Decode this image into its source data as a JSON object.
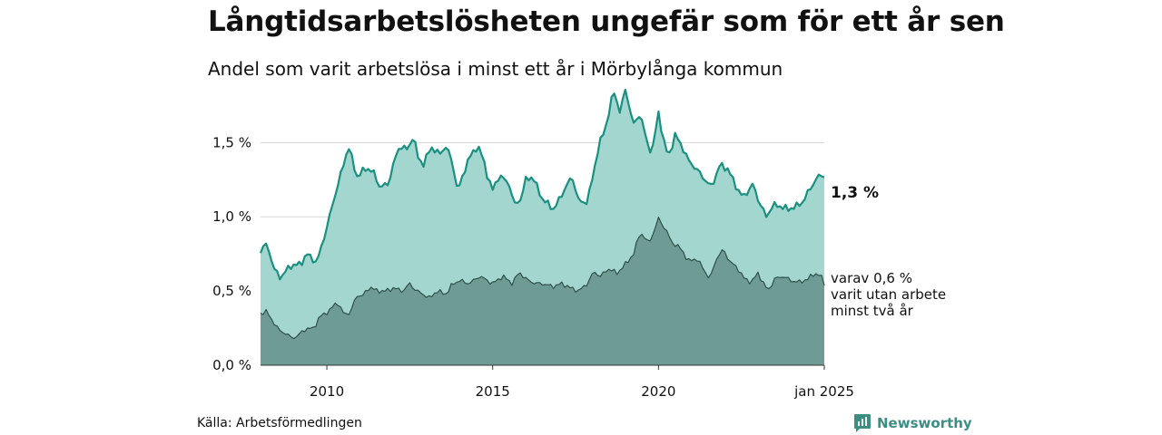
{
  "title": "Långtidsarbetslösheten ungefär som för ett år sen",
  "subtitle": "Andel som varit arbetslösa i minst ett år i Mörbylånga kommun",
  "source": "Källa: Arbetsförmedlingen",
  "brand": {
    "name": "Newsworthy",
    "icon": "newsworthy-logo-icon",
    "color": "#3c8e82"
  },
  "end_label": "1,3 %",
  "sub_label_lines": [
    "varav 0,6 %",
    "varit utan arbete",
    "minst två år"
  ],
  "colors": {
    "total_fill": "#a3d6cf",
    "total_line": "#1a9080",
    "long_fill": "#6e9c95",
    "long_line": "#2f4f4a",
    "grid": "#d7d7d7"
  },
  "chart_data": {
    "type": "area",
    "x_unit": "year",
    "x_start": 2008.0,
    "x_end": 2025.0,
    "x_step_months": 1,
    "xlim": [
      2008.0,
      2025.0
    ],
    "ylim": [
      0,
      1.85
    ],
    "grid": "horizontal",
    "yticks": [
      {
        "value": 0.0,
        "label": "0,0 %"
      },
      {
        "value": 0.5,
        "label": "0,5 %"
      },
      {
        "value": 1.0,
        "label": "1,0 %"
      },
      {
        "value": 1.5,
        "label": "1,5 %"
      }
    ],
    "xticks": [
      {
        "value": 2010,
        "label": "2010"
      },
      {
        "value": 2015,
        "label": "2015"
      },
      {
        "value": 2020,
        "label": "2020"
      },
      {
        "value": 2025,
        "label": "jan 2025"
      }
    ],
    "series": [
      {
        "name": "",
        "key": "total",
        "anchors": [
          [
            2008.0,
            0.77
          ],
          [
            2008.2,
            0.82
          ],
          [
            2008.4,
            0.65
          ],
          [
            2008.6,
            0.59
          ],
          [
            2008.9,
            0.67
          ],
          [
            2009.2,
            0.68
          ],
          [
            2009.4,
            0.75
          ],
          [
            2009.7,
            0.69
          ],
          [
            2010.0,
            0.93
          ],
          [
            2010.25,
            1.15
          ],
          [
            2010.5,
            1.35
          ],
          [
            2010.65,
            1.48
          ],
          [
            2010.9,
            1.27
          ],
          [
            2011.2,
            1.33
          ],
          [
            2011.4,
            1.3
          ],
          [
            2011.6,
            1.2
          ],
          [
            2011.85,
            1.22
          ],
          [
            2012.0,
            1.35
          ],
          [
            2012.2,
            1.48
          ],
          [
            2012.45,
            1.45
          ],
          [
            2012.6,
            1.55
          ],
          [
            2012.75,
            1.4
          ],
          [
            2012.9,
            1.35
          ],
          [
            2013.15,
            1.47
          ],
          [
            2013.4,
            1.42
          ],
          [
            2013.6,
            1.48
          ],
          [
            2013.8,
            1.35
          ],
          [
            2013.95,
            1.17
          ],
          [
            2014.25,
            1.38
          ],
          [
            2014.55,
            1.48
          ],
          [
            2014.7,
            1.4
          ],
          [
            2014.85,
            1.27
          ],
          [
            2015.0,
            1.18
          ],
          [
            2015.2,
            1.28
          ],
          [
            2015.5,
            1.22
          ],
          [
            2015.65,
            1.08
          ],
          [
            2015.85,
            1.12
          ],
          [
            2016.0,
            1.25
          ],
          [
            2016.2,
            1.27
          ],
          [
            2016.5,
            1.12
          ],
          [
            2016.7,
            1.08
          ],
          [
            2016.85,
            1.05
          ],
          [
            2017.2,
            1.2
          ],
          [
            2017.4,
            1.27
          ],
          [
            2017.6,
            1.1
          ],
          [
            2017.85,
            1.1
          ],
          [
            2018.0,
            1.25
          ],
          [
            2018.2,
            1.48
          ],
          [
            2018.4,
            1.6
          ],
          [
            2018.65,
            1.85
          ],
          [
            2018.85,
            1.7
          ],
          [
            2019.0,
            1.86
          ],
          [
            2019.25,
            1.62
          ],
          [
            2019.45,
            1.7
          ],
          [
            2019.65,
            1.5
          ],
          [
            2019.8,
            1.43
          ],
          [
            2020.0,
            1.7
          ],
          [
            2020.15,
            1.52
          ],
          [
            2020.3,
            1.4
          ],
          [
            2020.5,
            1.55
          ],
          [
            2020.7,
            1.48
          ],
          [
            2020.9,
            1.38
          ],
          [
            2021.15,
            1.32
          ],
          [
            2021.4,
            1.25
          ],
          [
            2021.6,
            1.2
          ],
          [
            2021.85,
            1.35
          ],
          [
            2022.1,
            1.32
          ],
          [
            2022.35,
            1.2
          ],
          [
            2022.55,
            1.13
          ],
          [
            2022.85,
            1.22
          ],
          [
            2023.0,
            1.12
          ],
          [
            2023.25,
            1.0
          ],
          [
            2023.45,
            1.08
          ],
          [
            2023.7,
            1.07
          ],
          [
            2023.9,
            1.05
          ],
          [
            2024.15,
            1.07
          ],
          [
            2024.35,
            1.1
          ],
          [
            2024.6,
            1.2
          ],
          [
            2024.8,
            1.27
          ],
          [
            2025.0,
            1.28
          ]
        ]
      },
      {
        "name": "",
        "key": "long",
        "anchors": [
          [
            2008.0,
            0.35
          ],
          [
            2008.2,
            0.36
          ],
          [
            2008.5,
            0.25
          ],
          [
            2008.7,
            0.22
          ],
          [
            2008.9,
            0.19
          ],
          [
            2009.1,
            0.19
          ],
          [
            2009.3,
            0.24
          ],
          [
            2009.6,
            0.25
          ],
          [
            2009.8,
            0.33
          ],
          [
            2010.1,
            0.37
          ],
          [
            2010.3,
            0.43
          ],
          [
            2010.5,
            0.35
          ],
          [
            2010.7,
            0.35
          ],
          [
            2010.9,
            0.47
          ],
          [
            2011.1,
            0.47
          ],
          [
            2011.3,
            0.53
          ],
          [
            2011.5,
            0.5
          ],
          [
            2011.8,
            0.5
          ],
          [
            2012.0,
            0.52
          ],
          [
            2012.3,
            0.5
          ],
          [
            2012.5,
            0.55
          ],
          [
            2012.7,
            0.5
          ],
          [
            2012.9,
            0.48
          ],
          [
            2013.1,
            0.45
          ],
          [
            2013.3,
            0.5
          ],
          [
            2013.6,
            0.48
          ],
          [
            2013.8,
            0.55
          ],
          [
            2014.0,
            0.57
          ],
          [
            2014.3,
            0.55
          ],
          [
            2014.6,
            0.6
          ],
          [
            2014.85,
            0.57
          ],
          [
            2015.0,
            0.55
          ],
          [
            2015.3,
            0.6
          ],
          [
            2015.6,
            0.55
          ],
          [
            2015.8,
            0.63
          ],
          [
            2016.0,
            0.58
          ],
          [
            2016.3,
            0.55
          ],
          [
            2016.5,
            0.55
          ],
          [
            2016.8,
            0.53
          ],
          [
            2017.1,
            0.55
          ],
          [
            2017.35,
            0.52
          ],
          [
            2017.6,
            0.5
          ],
          [
            2017.85,
            0.55
          ],
          [
            2018.05,
            0.63
          ],
          [
            2018.25,
            0.6
          ],
          [
            2018.5,
            0.65
          ],
          [
            2018.75,
            0.62
          ],
          [
            2019.0,
            0.68
          ],
          [
            2019.25,
            0.75
          ],
          [
            2019.45,
            0.9
          ],
          [
            2019.7,
            0.82
          ],
          [
            2019.9,
            0.92
          ],
          [
            2020.0,
            0.99
          ],
          [
            2020.2,
            0.92
          ],
          [
            2020.4,
            0.83
          ],
          [
            2020.7,
            0.78
          ],
          [
            2020.9,
            0.7
          ],
          [
            2021.15,
            0.72
          ],
          [
            2021.35,
            0.65
          ],
          [
            2021.55,
            0.58
          ],
          [
            2021.75,
            0.72
          ],
          [
            2021.95,
            0.78
          ],
          [
            2022.15,
            0.7
          ],
          [
            2022.4,
            0.65
          ],
          [
            2022.6,
            0.58
          ],
          [
            2022.8,
            0.56
          ],
          [
            2023.0,
            0.62
          ],
          [
            2023.3,
            0.5
          ],
          [
            2023.5,
            0.58
          ],
          [
            2023.75,
            0.6
          ],
          [
            2024.0,
            0.57
          ],
          [
            2024.25,
            0.56
          ],
          [
            2024.5,
            0.58
          ],
          [
            2024.7,
            0.62
          ],
          [
            2024.9,
            0.6
          ],
          [
            2025.0,
            0.55
          ]
        ]
      }
    ]
  }
}
